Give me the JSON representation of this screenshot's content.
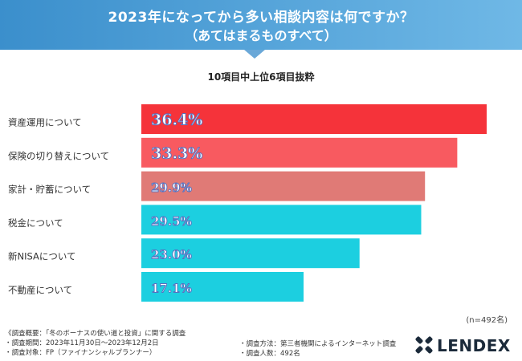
{
  "header": {
    "title_line1": "2023年になってから多い相談内容は何ですか？",
    "title_line2": "（あてはまるものすべて）"
  },
  "subtitle": "10項目中上位6項目抜粋",
  "sample_size": "(n=492名)",
  "footer": {
    "overview": "《調査概要：「冬のボーナスの使い道と投資」に関する調査",
    "period": "・調査期間：2023年11月30日〜2023年12月2日",
    "target": "・調査対象：FP（ファイナンシャルプランナー）",
    "method": "・調査方法：第三者機関によるインターネット調査",
    "respondents": "・調査人数：492名"
  },
  "logo": {
    "text": "LENDEX"
  },
  "chart_data": {
    "type": "bar",
    "orientation": "horizontal",
    "title": "10項目中上位6項目抜粋",
    "categories": [
      "資産運用について",
      "保険の切り替えについて",
      "家計・貯蓄について",
      "税金について",
      "新NISAについて",
      "不動産について"
    ],
    "values": [
      36.4,
      33.3,
      29.9,
      29.5,
      23.0,
      17.1
    ],
    "value_labels": [
      "36.4%",
      "33.3%",
      "29.9%",
      "29.5%",
      "23.0%",
      "17.1%"
    ],
    "colors": [
      "#f5333a",
      "#f85a60",
      "#e07a76",
      "#1ccfe0",
      "#1ccfe0",
      "#1ccfe0"
    ],
    "unit": "%",
    "xlim": [
      0,
      36.4
    ],
    "grid": false
  }
}
